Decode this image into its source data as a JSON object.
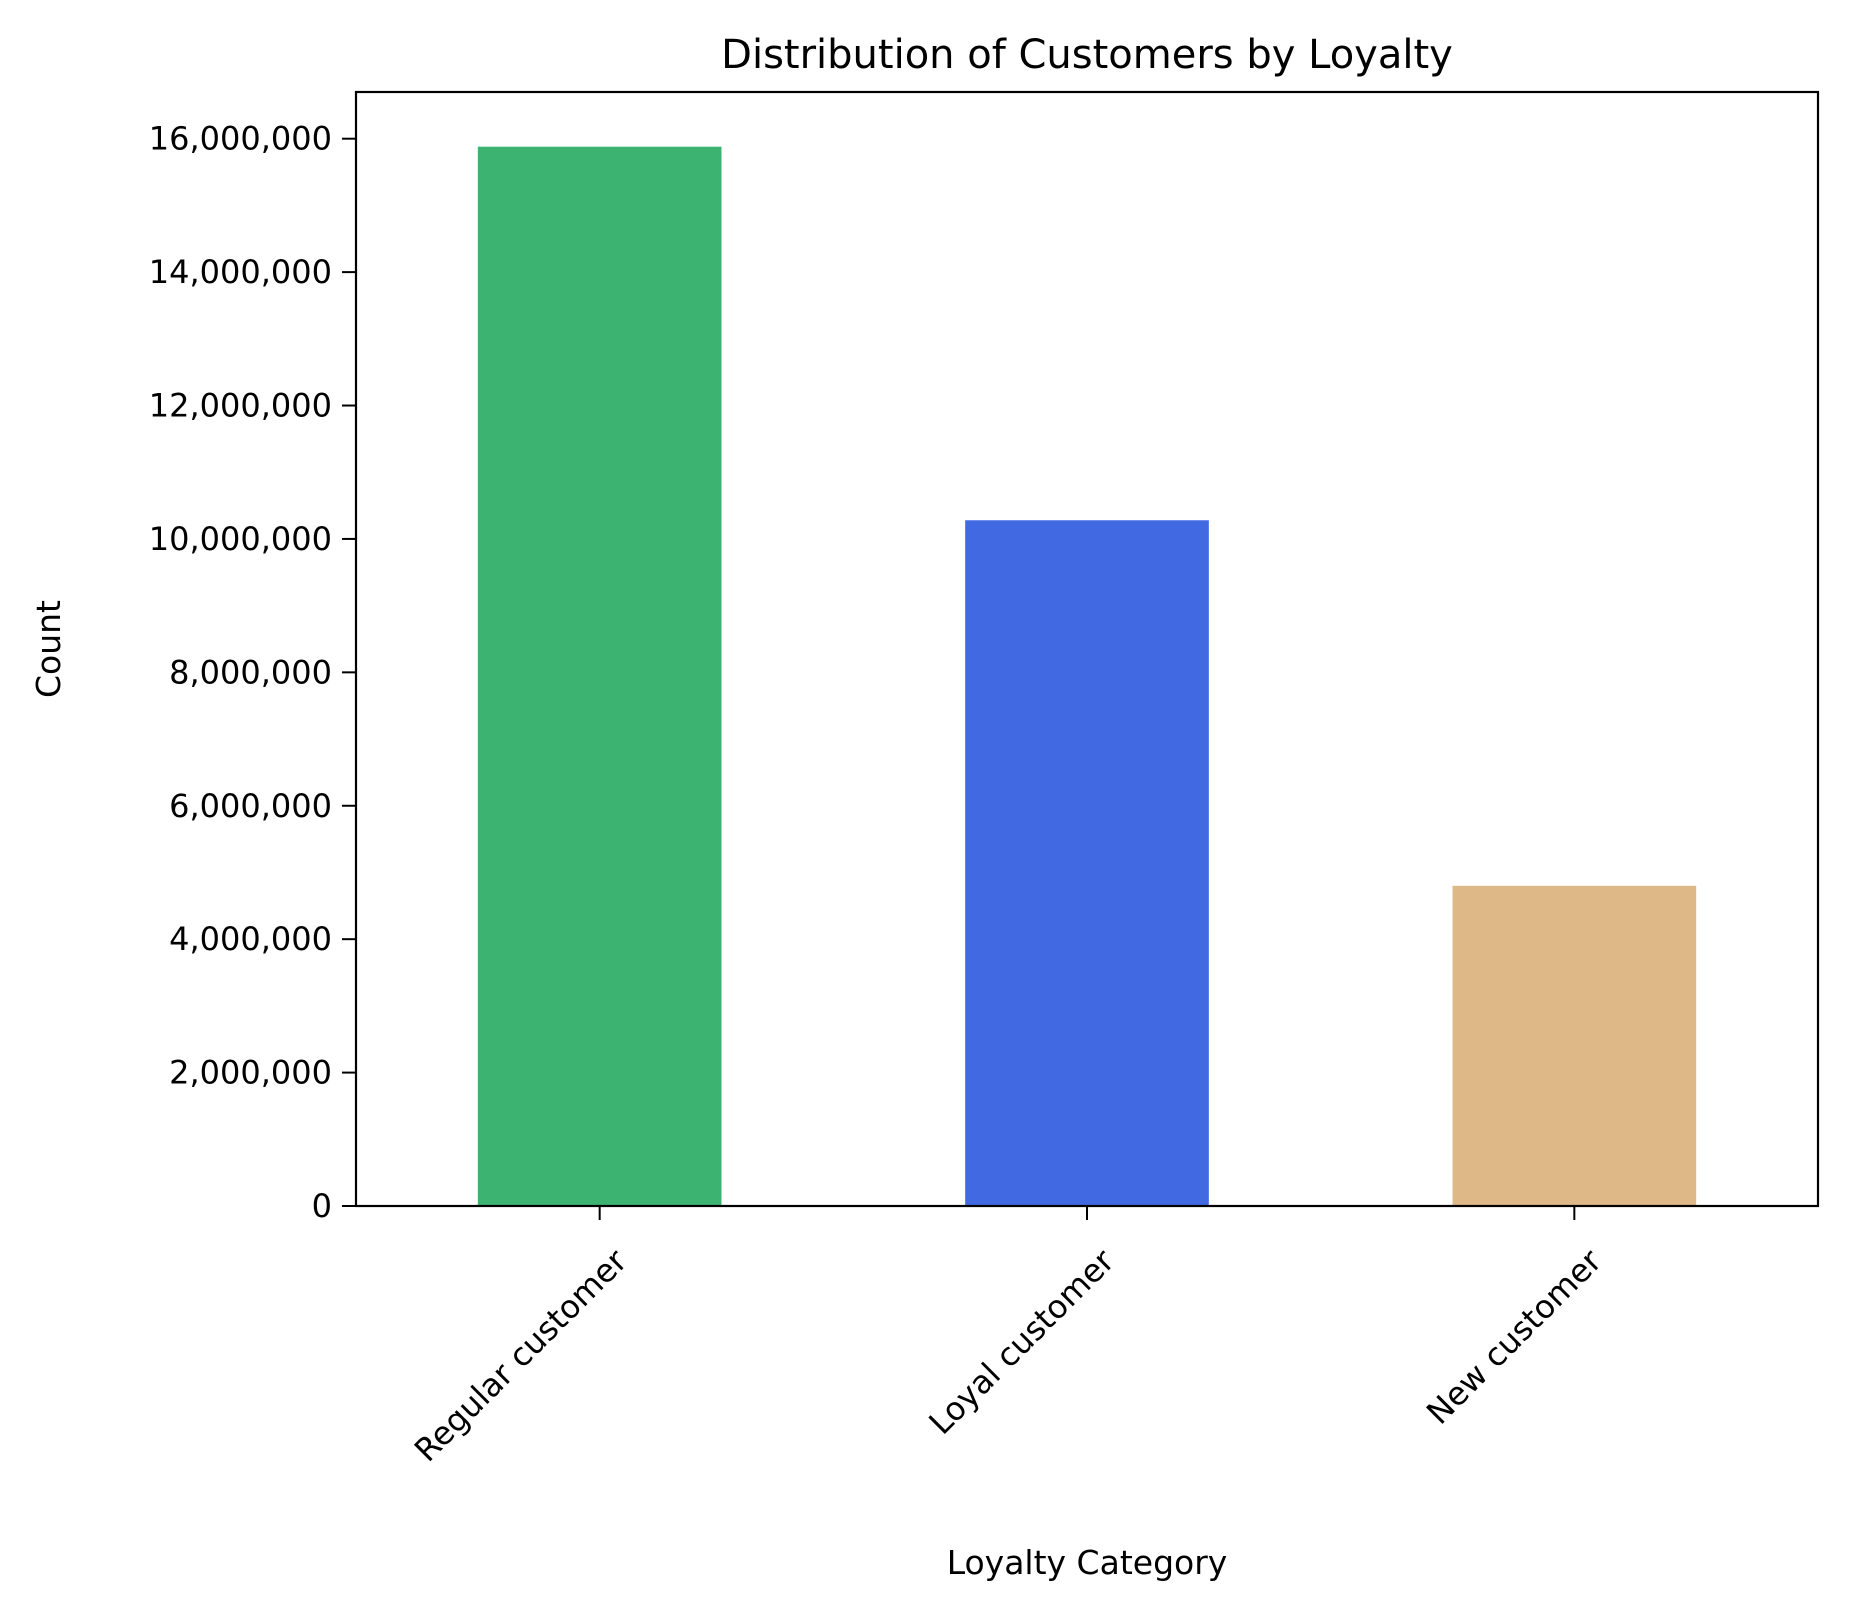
{
  "chart_data": {
    "type": "bar",
    "title": "Distribution of Customers by Loyalty",
    "xlabel": "Loyalty Category",
    "ylabel": "Count",
    "categories": [
      "Regular customer",
      "Loyal customer",
      "New customer"
    ],
    "values": [
      15880000,
      10280000,
      4800000
    ],
    "colors": [
      "#3cb371",
      "#4169e1",
      "#deb887"
    ],
    "ylim": [
      0,
      16700000
    ],
    "yticks": [
      0,
      2000000,
      4000000,
      6000000,
      8000000,
      10000000,
      12000000,
      14000000,
      16000000
    ],
    "ytick_labels": [
      "0",
      "2,000,000",
      "4,000,000",
      "6,000,000",
      "8,000,000",
      "10,000,000",
      "12,000,000",
      "14,000,000",
      "16,000,000"
    ],
    "grid": false,
    "legend": "none"
  }
}
